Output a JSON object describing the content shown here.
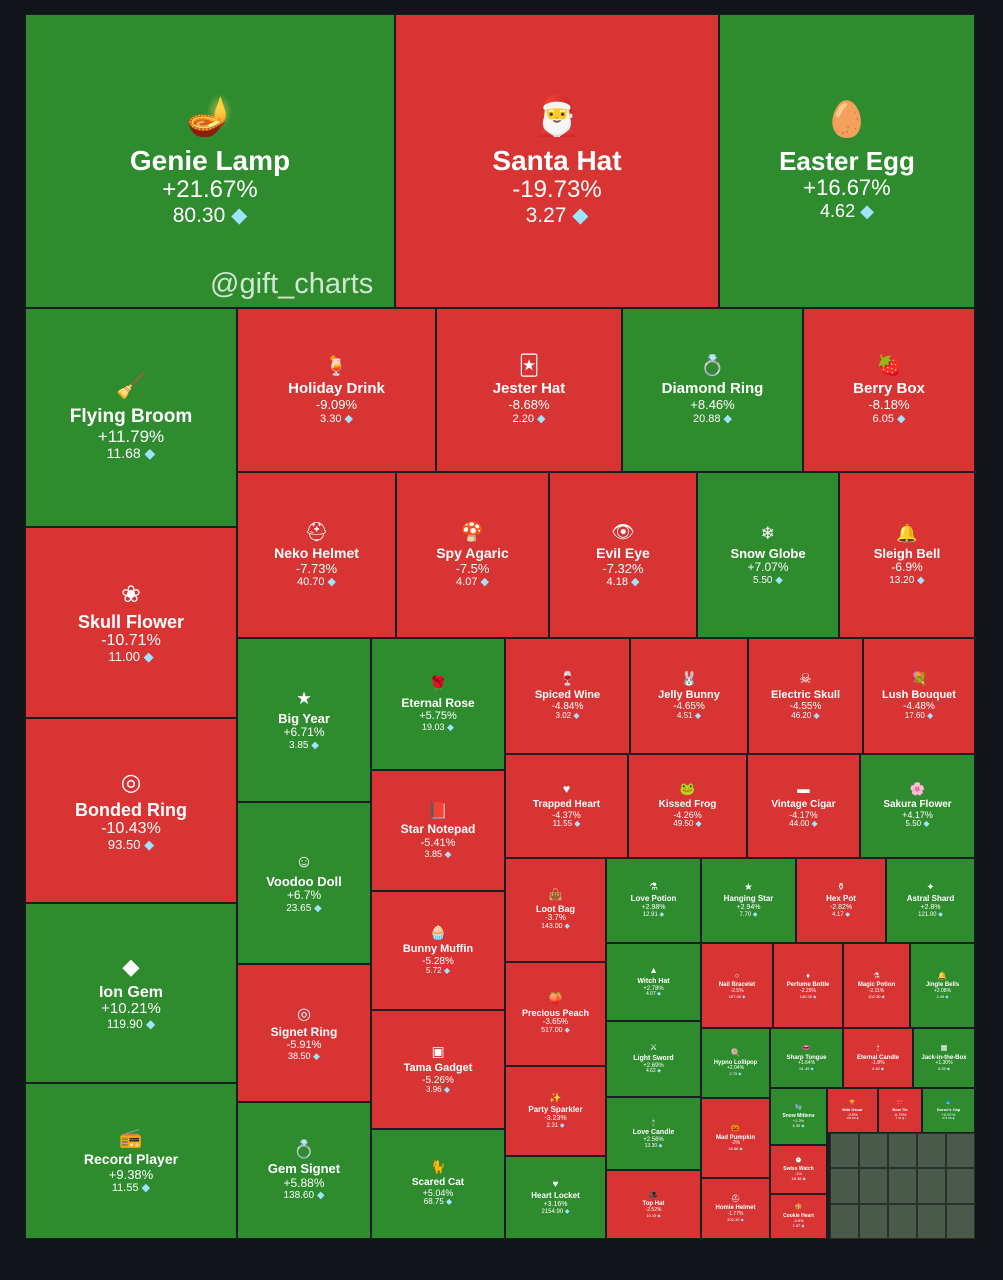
{
  "watermark": "@gift_charts",
  "colors": {
    "up": "#2e8b2e",
    "down": "#d93434",
    "background": "#111418",
    "diamond": "#9fe3ff"
  },
  "chart_data": {
    "type": "treemap",
    "value_unit": "diamond",
    "items": [
      {
        "name": "Genie Lamp",
        "change": "+21.67%",
        "price": "80.30",
        "icon": "genie-lamp-icon"
      },
      {
        "name": "Santa Hat",
        "change": "-19.73%",
        "price": "3.27",
        "icon": "santa-hat-icon"
      },
      {
        "name": "Easter Egg",
        "change": "+16.67%",
        "price": "4.62",
        "icon": "easter-egg-icon"
      },
      {
        "name": "Flying Broom",
        "change": "+11.79%",
        "price": "11.68",
        "icon": "broom-icon"
      },
      {
        "name": "Holiday Drink",
        "change": "-9.09%",
        "price": "3.30",
        "icon": "drink-icon"
      },
      {
        "name": "Jester Hat",
        "change": "-8.68%",
        "price": "2.20",
        "icon": "jester-hat-icon"
      },
      {
        "name": "Diamond Ring",
        "change": "+8.46%",
        "price": "20.88",
        "icon": "ring-box-icon"
      },
      {
        "name": "Berry Box",
        "change": "-8.18%",
        "price": "6.05",
        "icon": "berry-box-icon"
      },
      {
        "name": "Skull Flower",
        "change": "-10.71%",
        "price": "11.00",
        "icon": "skull-flower-icon"
      },
      {
        "name": "Neko Helmet",
        "change": "-7.73%",
        "price": "40.70",
        "icon": "helmet-icon"
      },
      {
        "name": "Spy Agaric",
        "change": "-7.5%",
        "price": "4.07",
        "icon": "mushroom-icon"
      },
      {
        "name": "Evil Eye",
        "change": "-7.32%",
        "price": "4.18",
        "icon": "eye-icon"
      },
      {
        "name": "Snow Globe",
        "change": "+7.07%",
        "price": "5.50",
        "icon": "snow-globe-icon"
      },
      {
        "name": "Sleigh Bell",
        "change": "-6.9%",
        "price": "13.20",
        "icon": "bell-icon"
      },
      {
        "name": "Bonded Ring",
        "change": "-10.43%",
        "price": "93.50",
        "icon": "ring-icon"
      },
      {
        "name": "Big Year",
        "change": "+6.71%",
        "price": "3.85",
        "icon": "year-icon"
      },
      {
        "name": "Eternal Rose",
        "change": "+5.75%",
        "price": "19.03",
        "icon": "rose-icon"
      },
      {
        "name": "Spiced Wine",
        "change": "-4.84%",
        "price": "3.02",
        "icon": "wine-icon"
      },
      {
        "name": "Jelly Bunny",
        "change": "-4.65%",
        "price": "4.51",
        "icon": "bunny-icon"
      },
      {
        "name": "Electric Skull",
        "change": "-4.55%",
        "price": "46.20",
        "icon": "skull-icon"
      },
      {
        "name": "Lush Bouquet",
        "change": "-4.48%",
        "price": "17.60",
        "icon": "bouquet-icon"
      },
      {
        "name": "Star Notepad",
        "change": "-5.41%",
        "price": "3.85",
        "icon": "notepad-icon"
      },
      {
        "name": "Trapped Heart",
        "change": "-4.37%",
        "price": "11.55",
        "icon": "heart-icon"
      },
      {
        "name": "Kissed Frog",
        "change": "-4.26%",
        "price": "49.50",
        "icon": "frog-icon"
      },
      {
        "name": "Vintage Cigar",
        "change": "-4.17%",
        "price": "44.00",
        "icon": "cigar-icon"
      },
      {
        "name": "Sakura Flower",
        "change": "+4.17%",
        "price": "5.50",
        "icon": "sakura-icon"
      },
      {
        "name": "Voodoo Doll",
        "change": "+6.7%",
        "price": "23.65",
        "icon": "doll-icon"
      },
      {
        "name": "Ion Gem",
        "change": "+10.21%",
        "price": "119.90",
        "icon": "gem-icon"
      },
      {
        "name": "Loot Bag",
        "change": "-3.7%",
        "price": "143.00",
        "icon": "bag-icon"
      },
      {
        "name": "Love Potion",
        "change": "+2.98%",
        "price": "12.91",
        "icon": "potion-icon"
      },
      {
        "name": "Hanging Star",
        "change": "+2.94%",
        "price": "7.70",
        "icon": "star-icon"
      },
      {
        "name": "Hex Pot",
        "change": "-2.82%",
        "price": "4.17",
        "icon": "pot-icon"
      },
      {
        "name": "Astral Shard",
        "change": "+2.8%",
        "price": "121.00",
        "icon": "shard-icon"
      },
      {
        "name": "Bunny Muffin",
        "change": "-5.28%",
        "price": "5.72",
        "icon": "muffin-icon"
      },
      {
        "name": "Witch Hat",
        "change": "+2.78%",
        "price": "4.07",
        "icon": "witch-hat-icon"
      },
      {
        "name": "Nail Bracelet",
        "change": "-2.5%",
        "price": "187.00",
        "icon": "bracelet-icon"
      },
      {
        "name": "Perfume Bottle",
        "change": "-2.26%",
        "price": "140.00",
        "icon": "perfume-icon"
      },
      {
        "name": "Magic Potion",
        "change": "-2.11%",
        "price": "102.30",
        "icon": "magic-potion-icon"
      },
      {
        "name": "Jingle Bells",
        "change": "+2.08%",
        "price": "2.49",
        "icon": "bells-icon"
      },
      {
        "name": "Precious Peach",
        "change": "-3.65%",
        "price": "517.00",
        "icon": "peach-icon"
      },
      {
        "name": "Signet Ring",
        "change": "-5.91%",
        "price": "38.50",
        "icon": "signet-ring-icon"
      },
      {
        "name": "Tama Gadget",
        "change": "-5.26%",
        "price": "3.96",
        "icon": "gadget-icon"
      },
      {
        "name": "Light Sword",
        "change": "+2.69%",
        "price": "4.62",
        "icon": "sword-icon"
      },
      {
        "name": "Hypno Lollipop",
        "change": "+2.04%",
        "price": "2.75",
        "icon": "lollipop-icon"
      },
      {
        "name": "Sharp Tongue",
        "change": "+1.64%",
        "price": "51.49",
        "icon": "tongue-icon"
      },
      {
        "name": "Eternal Candle",
        "change": "-1.8%",
        "price": "3.40",
        "icon": "candle-icon"
      },
      {
        "name": "Jack-in-the-Box",
        "change": "+1.30%",
        "price": "3.29",
        "icon": "jack-box-icon"
      },
      {
        "name": "Party Sparkler",
        "change": "-3.23%",
        "price": "2.31",
        "icon": "sparkler-icon"
      },
      {
        "name": "Love Candle",
        "change": "+2.56%",
        "price": "13.30",
        "icon": "love-candle-icon"
      },
      {
        "name": "Mad Pumpkin",
        "change": "-2%",
        "price": "16.86",
        "icon": "pumpkin-icon"
      },
      {
        "name": "Snow Mittens",
        "change": "+1.3%",
        "price": "5.30",
        "icon": "mittens-icon"
      },
      {
        "name": "Mini Oscar",
        "change": "-0.9%",
        "price": "134.00",
        "icon": "oscar-icon"
      },
      {
        "name": "Bow Tie",
        "change": "-0.79%",
        "price": "7.41",
        "icon": "bow-tie-icon"
      },
      {
        "name": "Durov's Cap",
        "change": "+0.67%",
        "price": "674.90",
        "icon": "cap-icon"
      },
      {
        "name": "Record Player",
        "change": "+9.38%",
        "price": "11.55",
        "icon": "record-player-icon"
      },
      {
        "name": "Gem Signet",
        "change": "+5.88%",
        "price": "138.60",
        "icon": "gem-signet-icon"
      },
      {
        "name": "Scared Cat",
        "change": "+5.04%",
        "price": "68.75",
        "icon": "cat-icon"
      },
      {
        "name": "Heart Locket",
        "change": "+3.16%",
        "price": "2154.90",
        "icon": "locket-icon"
      },
      {
        "name": "Top Hat",
        "change": "-2.52%",
        "price": "10.19",
        "icon": "top-hat-icon"
      },
      {
        "name": "Homie Helmet",
        "change": "-1.77%",
        "price": "202.30",
        "icon": "homie-helmet-icon"
      },
      {
        "name": "Swiss Watch",
        "change": "-1%",
        "price": "18.38",
        "icon": "watch-icon"
      },
      {
        "name": "Cookie Heart",
        "change": "-0.9%",
        "price": "1.87",
        "icon": "cookie-icon"
      }
    ]
  }
}
